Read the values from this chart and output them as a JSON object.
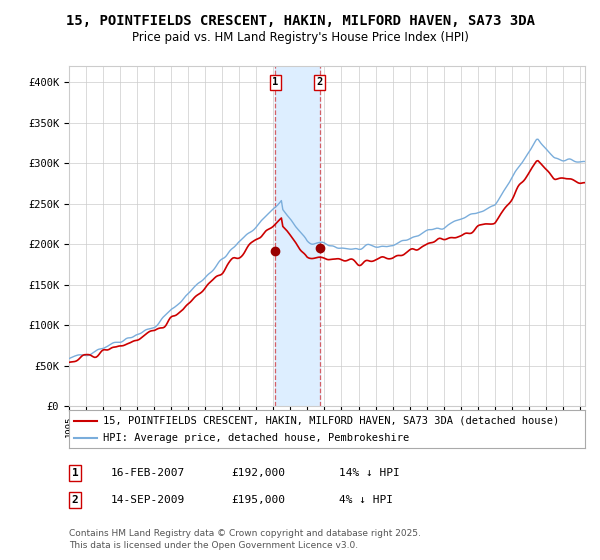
{
  "title": "15, POINTFIELDS CRESCENT, HAKIN, MILFORD HAVEN, SA73 3DA",
  "subtitle": "Price paid vs. HM Land Registry's House Price Index (HPI)",
  "legend_line1": "15, POINTFIELDS CRESCENT, HAKIN, MILFORD HAVEN, SA73 3DA (detached house)",
  "legend_line2": "HPI: Average price, detached house, Pembrokeshire",
  "sale1_date": "16-FEB-2007",
  "sale1_price": 192000,
  "sale1_pct": "14% ↓ HPI",
  "sale2_date": "14-SEP-2009",
  "sale2_price": 195000,
  "sale2_pct": "4% ↓ HPI",
  "footer": "Contains HM Land Registry data © Crown copyright and database right 2025.\nThis data is licensed under the Open Government Licence v3.0.",
  "ylim": [
    0,
    420000
  ],
  "yticks": [
    0,
    50000,
    100000,
    150000,
    200000,
    250000,
    300000,
    350000,
    400000
  ],
  "ytick_labels": [
    "£0",
    "£50K",
    "£100K",
    "£150K",
    "£200K",
    "£250K",
    "£300K",
    "£350K",
    "£400K"
  ],
  "hpi_color": "#7aaddb",
  "red_color": "#cc0000",
  "sale_dot_color": "#990000",
  "vspan_color": "#ddeeff",
  "vline_color": "#cc0000",
  "background_color": "#ffffff",
  "grid_color": "#cccccc",
  "sale1_year": 2007.12,
  "sale2_year": 2009.71,
  "title_fontsize": 10,
  "subtitle_fontsize": 8.5,
  "axis_fontsize": 7.5,
  "legend_fontsize": 7.5,
  "footer_fontsize": 6.5
}
